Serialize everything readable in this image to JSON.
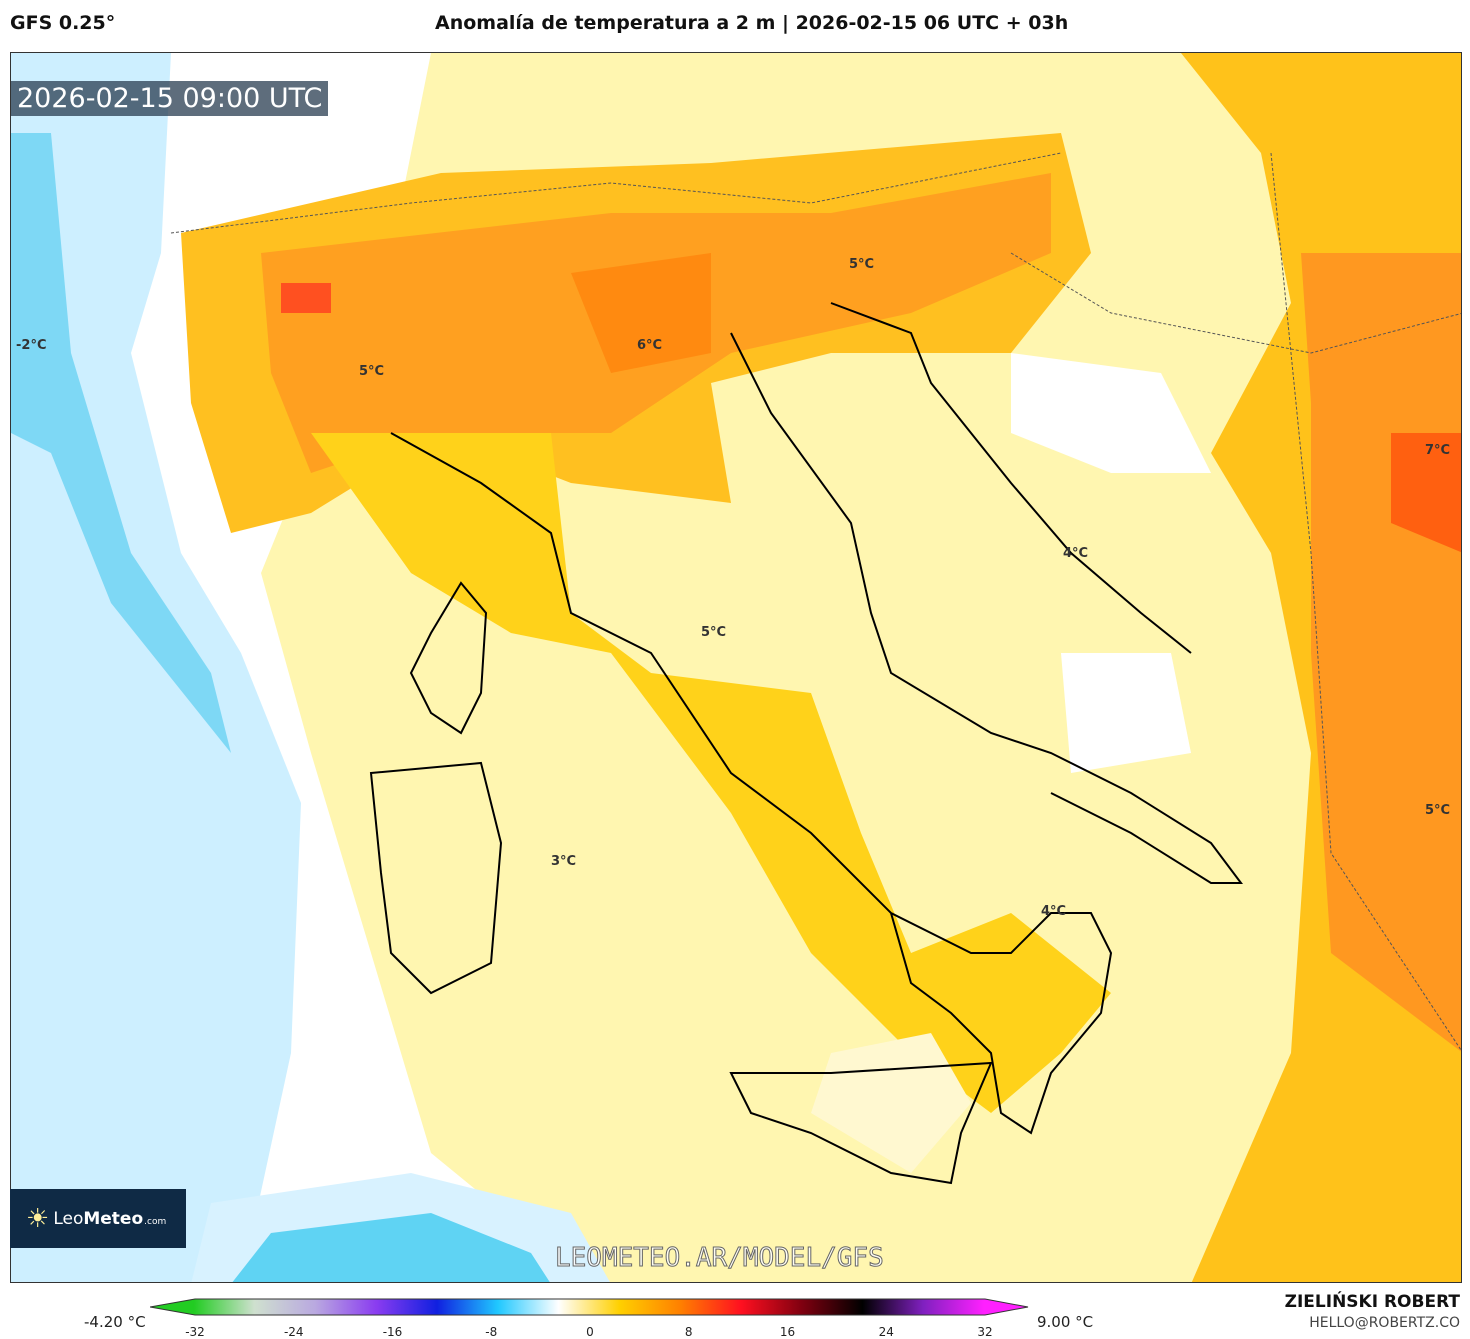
{
  "header": {
    "model": "GFS 0.25°",
    "title": "Anomalía de temperatura a 2 m | 2026-02-15 06 UTC + 03h"
  },
  "map": {
    "valid_time": "2026-02-15 09:00 UTC",
    "contour_labels": [
      {
        "text": "-2°C"
      },
      {
        "text": "5°C"
      },
      {
        "text": "6°C"
      },
      {
        "text": "5°C"
      },
      {
        "text": "7°C"
      },
      {
        "text": "4°C"
      },
      {
        "text": "5°C"
      },
      {
        "text": "3°C"
      },
      {
        "text": "4°C"
      },
      {
        "text": "5°C"
      }
    ],
    "watermark": "LEOMETEO.AR/MODEL/GFS",
    "logo": {
      "name": "LeoMeteo",
      "suffix": ".com"
    }
  },
  "colorbar": {
    "min_label": "-4.20 °C",
    "max_label": "9.00 °C",
    "ticks": [
      "-32",
      "-24",
      "-16",
      "-8",
      "0",
      "8",
      "16",
      "24",
      "32"
    ],
    "colors": [
      "#22cc22",
      "#cfe0cf",
      "#b9a8e0",
      "#8a3cf0",
      "#1020e0",
      "#20c8ff",
      "#ffffff",
      "#ffd000",
      "#ff8000",
      "#ff1020",
      "#800010",
      "#000000",
      "#8020c0",
      "#ff20ff"
    ]
  },
  "credits": {
    "author": "ZIELIŃSKI ROBERT",
    "email": "HELLO@ROBERTZ.CO"
  }
}
